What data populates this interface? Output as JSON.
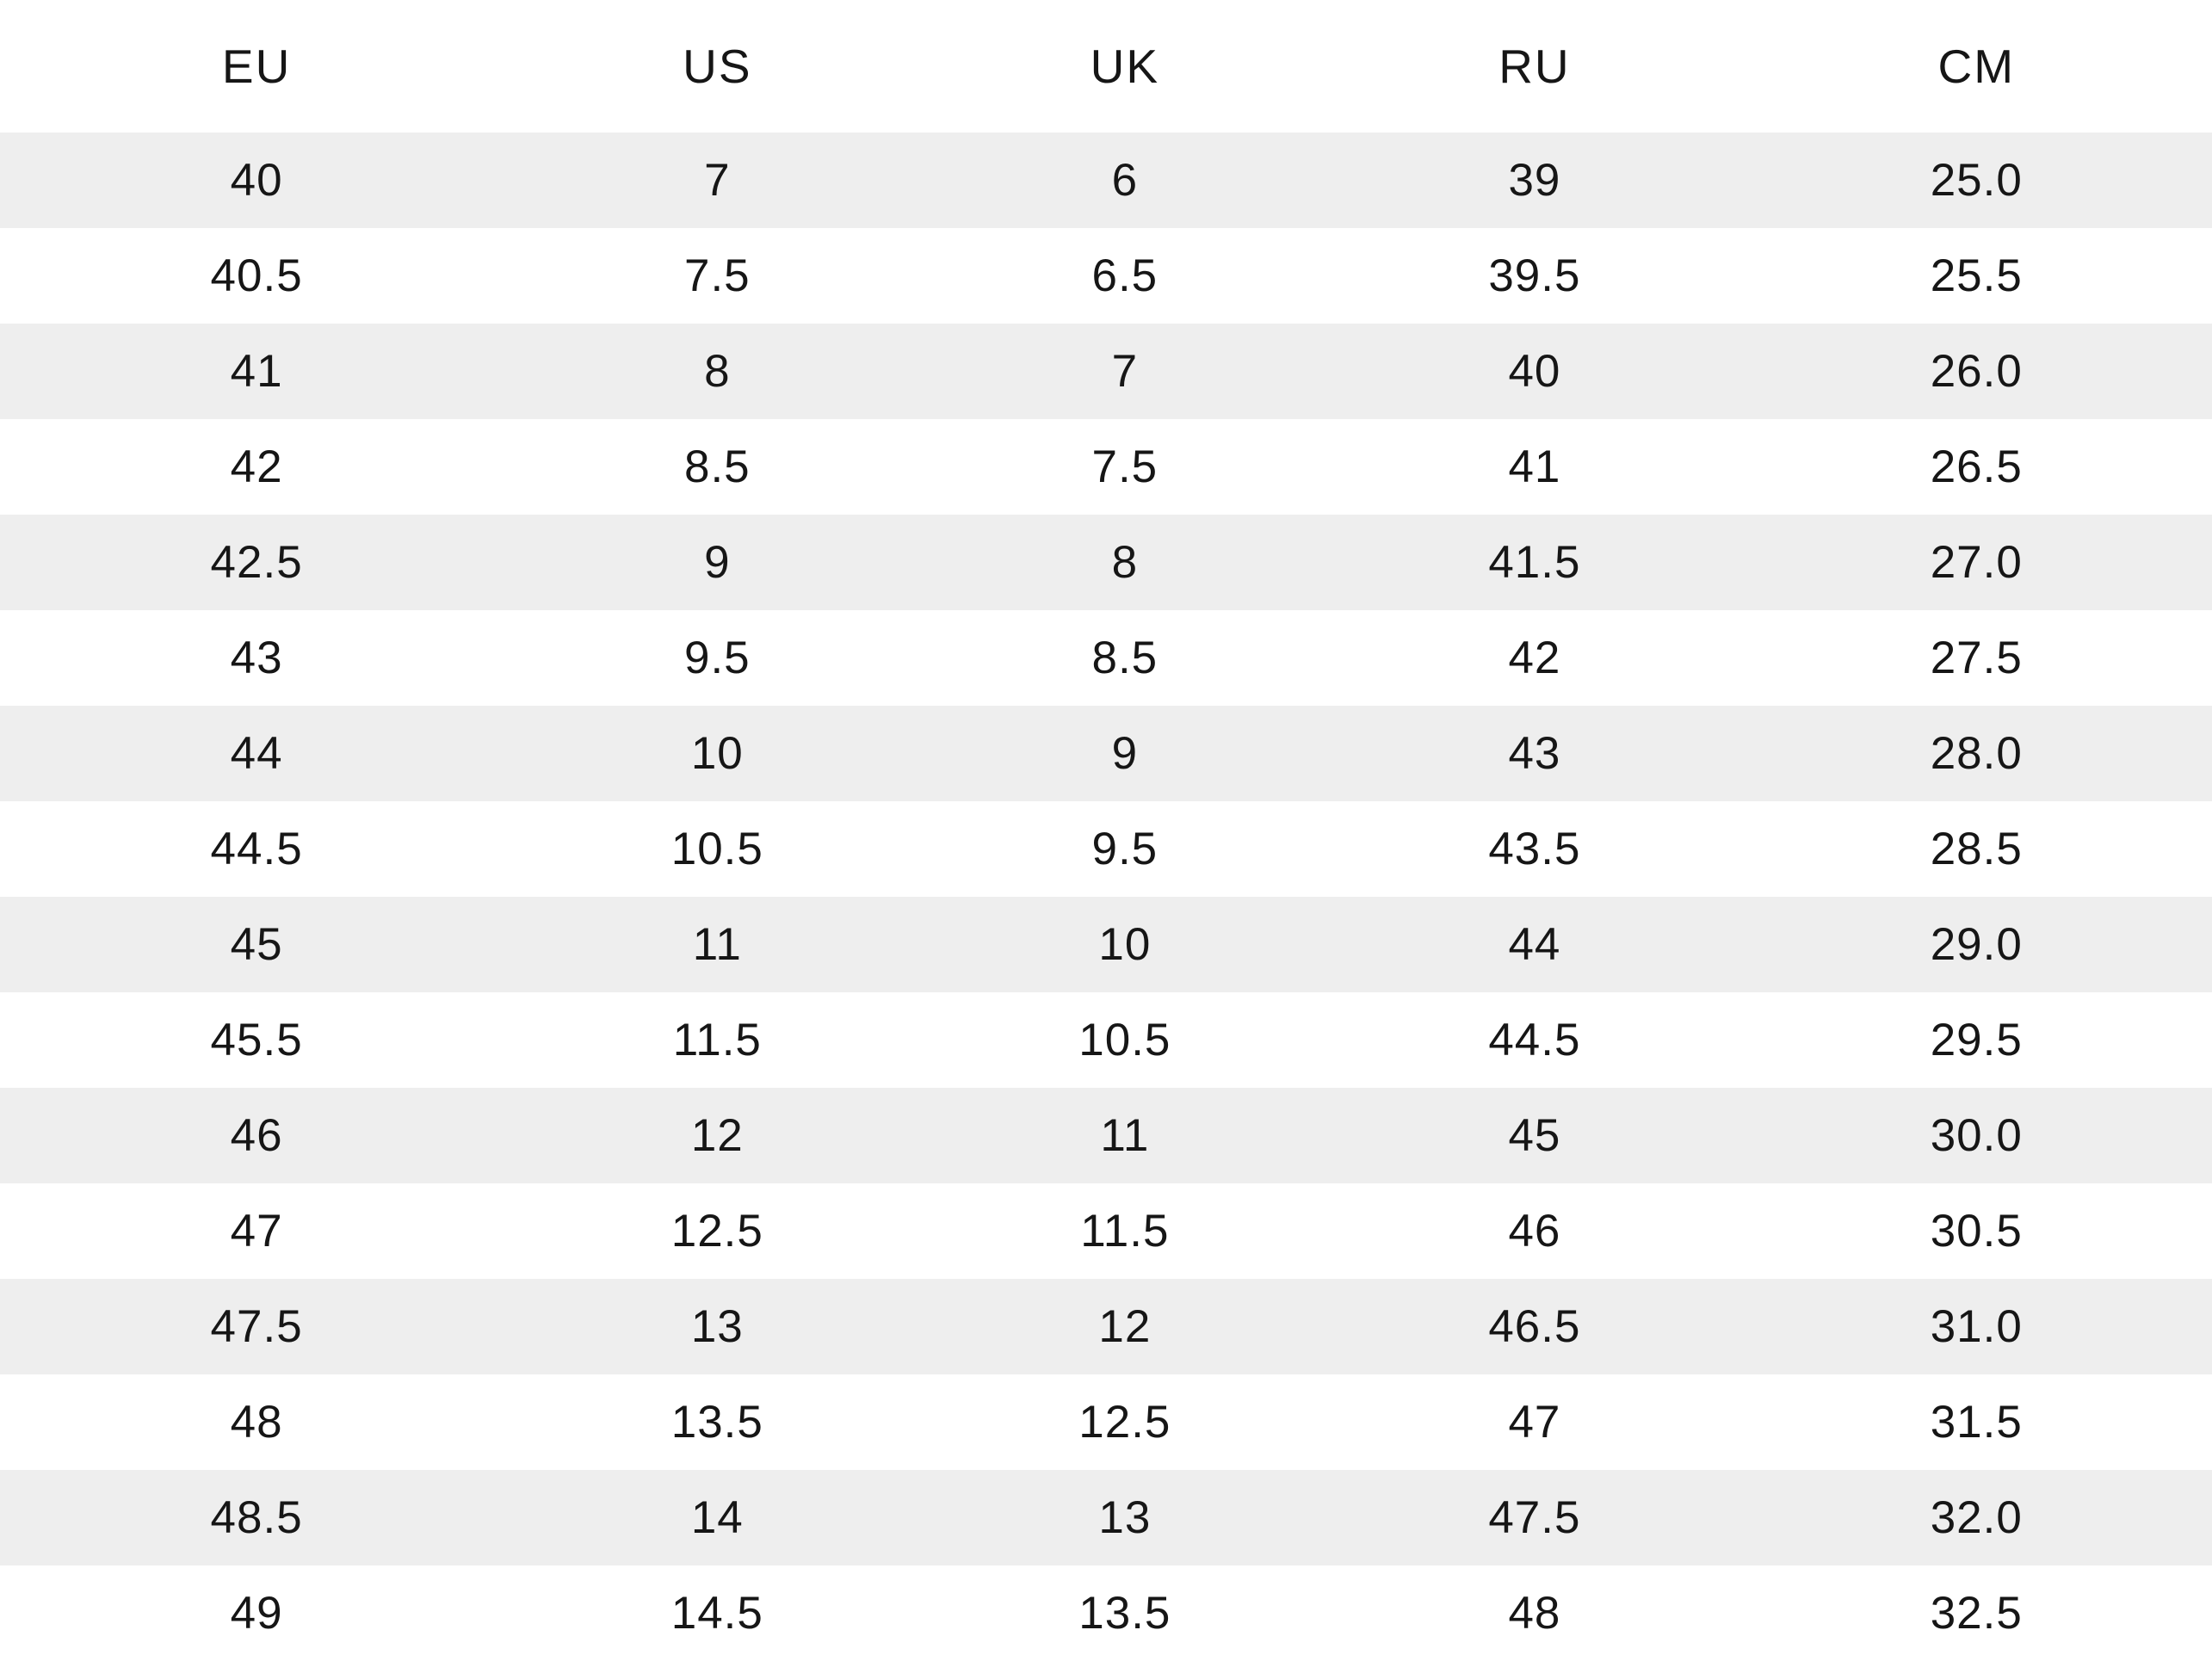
{
  "chart_data": {
    "type": "table",
    "title": "",
    "columns": [
      "EU",
      "US",
      "UK",
      "RU",
      "CM"
    ],
    "rows": [
      [
        "40",
        "7",
        "6",
        "39",
        "25.0"
      ],
      [
        "40.5",
        "7.5",
        "6.5",
        "39.5",
        "25.5"
      ],
      [
        "41",
        "8",
        "7",
        "40",
        "26.0"
      ],
      [
        "42",
        "8.5",
        "7.5",
        "41",
        "26.5"
      ],
      [
        "42.5",
        "9",
        "8",
        "41.5",
        "27.0"
      ],
      [
        "43",
        "9.5",
        "8.5",
        "42",
        "27.5"
      ],
      [
        "44",
        "10",
        "9",
        "43",
        "28.0"
      ],
      [
        "44.5",
        "10.5",
        "9.5",
        "43.5",
        "28.5"
      ],
      [
        "45",
        "11",
        "10",
        "44",
        "29.0"
      ],
      [
        "45.5",
        "11.5",
        "10.5",
        "44.5",
        "29.5"
      ],
      [
        "46",
        "12",
        "11",
        "45",
        "30.0"
      ],
      [
        "47",
        "12.5",
        "11.5",
        "46",
        "30.5"
      ],
      [
        "47.5",
        "13",
        "12",
        "46.5",
        "31.0"
      ],
      [
        "48",
        "13.5",
        "12.5",
        "47",
        "31.5"
      ],
      [
        "48.5",
        "14",
        "13",
        "47.5",
        "32.0"
      ],
      [
        "49",
        "14.5",
        "13.5",
        "48",
        "32.5"
      ]
    ],
    "layout": {
      "stripe_color": "#eeeeee",
      "background_color": "#ffffff",
      "text_color": "#161616",
      "grid": "off",
      "row_striping": "odd-rows-gray"
    }
  }
}
